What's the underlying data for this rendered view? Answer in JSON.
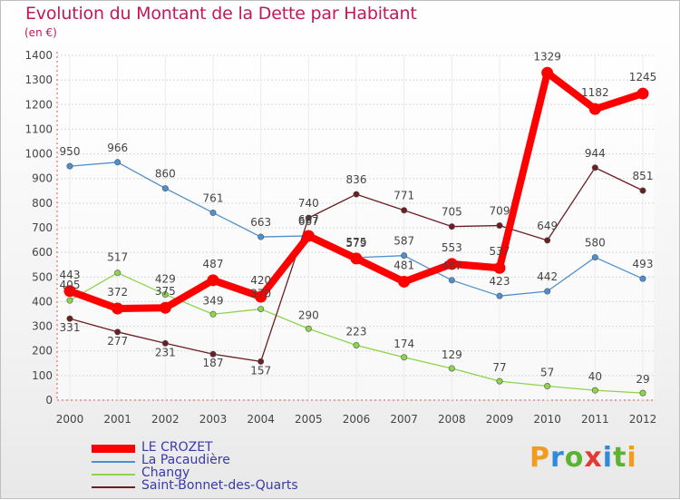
{
  "title": "Evolution du Montant de la Dette par Habitant",
  "subtitle": "(en €)",
  "logo": {
    "text": "Proxiti",
    "colors": [
      "#f29b1d",
      "#2e8bd9",
      "#5bb331",
      "#e53935",
      "#2e8bd9",
      "#5bb331",
      "#f29b1d"
    ]
  },
  "chart_data": {
    "type": "line",
    "x": [
      "2000",
      "2001",
      "2002",
      "2003",
      "2004",
      "2005",
      "2006",
      "2007",
      "2008",
      "2009",
      "2010",
      "2011",
      "2012"
    ],
    "ylim": [
      0,
      1400
    ],
    "yticks": [
      0,
      100,
      200,
      300,
      400,
      500,
      600,
      700,
      800,
      900,
      1000,
      1100,
      1200,
      1300,
      1400
    ],
    "grid": true,
    "legend_position": "bottom-left",
    "series": [
      {
        "name": "LE CROZET",
        "color": "#ff0000",
        "values": [
          443,
          372,
          375,
          487,
          420,
          667,
          575,
          481,
          553,
          537,
          1329,
          1182,
          1245
        ]
      },
      {
        "name": "La Pacaudière",
        "color": "#4f8fcf",
        "values": [
          950,
          966,
          860,
          761,
          663,
          667,
          579,
          587,
          487,
          423,
          442,
          580,
          493
        ]
      },
      {
        "name": "Changy",
        "color": "#8cd44a",
        "values": [
          405,
          517,
          429,
          349,
          370,
          290,
          223,
          174,
          129,
          77,
          57,
          40,
          29
        ]
      },
      {
        "name": "Saint-Bonnet-des-Quarts",
        "color": "#6b1f23",
        "values": [
          331,
          277,
          231,
          187,
          157,
          740,
          836,
          771,
          705,
          709,
          649,
          944,
          851
        ]
      }
    ]
  }
}
